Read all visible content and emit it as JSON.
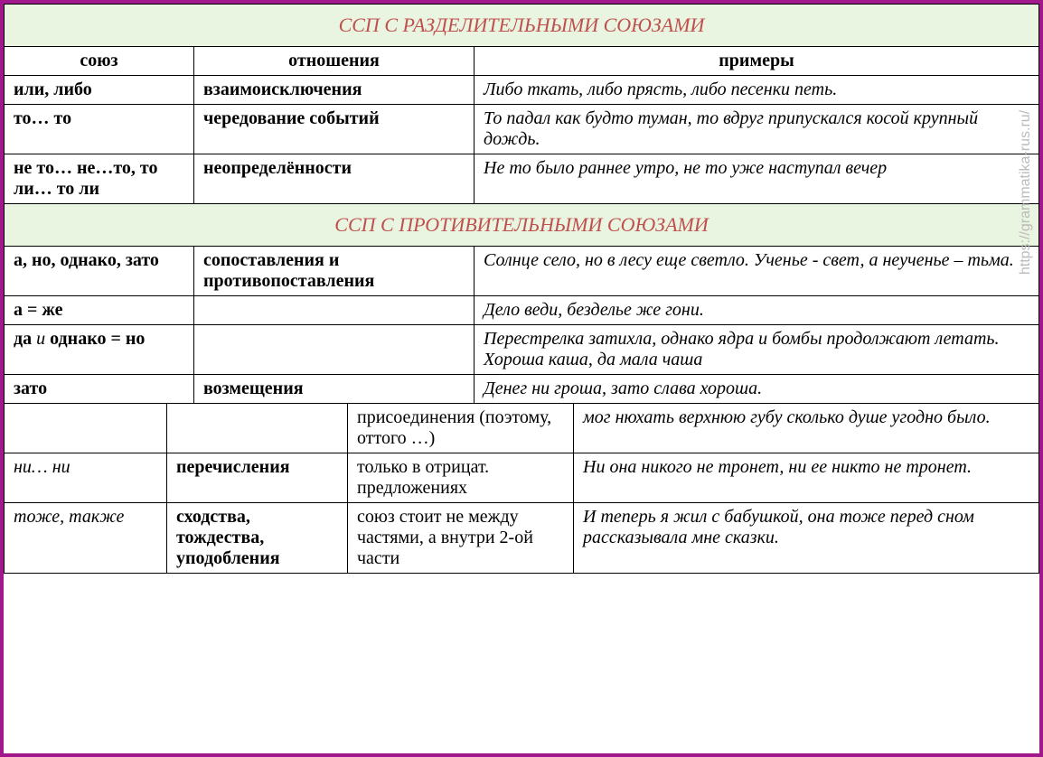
{
  "watermark": "https://grammatika-rus.ru/",
  "section1": {
    "title": "ССП С РАЗДЕЛИТЕЛЬНЫМИ СОЮЗАМИ",
    "headers": {
      "c1": "союз",
      "c2": "отношения",
      "c3": "примеры"
    },
    "rows": [
      {
        "conj": "или, либо",
        "rel": "взаимоисключения",
        "ex": "Либо ткать, либо прясть, либо песенки петь."
      },
      {
        "conj": "то… то",
        "rel": "чередование событий",
        "ex": "То падал как будто туман, то вдруг припускался косой крупный дождь."
      },
      {
        "conj": "не то… не…то, то ли… то ли",
        "rel": "неопределённости",
        "ex": "Не то было раннее утро, не то уже наступал вечер"
      }
    ]
  },
  "section2": {
    "title": "ССП С ПРОТИВИТЕЛЬНЫМИ СОЮЗАМИ",
    "rows": [
      {
        "conj": "а, но, однако, зато",
        "rel": "сопоставления и противопоставления",
        "ex": "Солнце село, но в лесу еще светло. Ученье - свет, а неученье – тьма."
      },
      {
        "conj": "а = же",
        "rel": "",
        "ex": "Дело веди, безделье же гони."
      },
      {
        "conj_html": "да <span class=\"italic-normal\">и</span> однако = но",
        "rel": "",
        "ex": "Перестрелка затихла, однако ядра и бомбы продолжают летать. Хороша каша, да мала чаша"
      },
      {
        "conj": "зато",
        "rel": "возмещения",
        "ex": "Денег ни гроша, зато слава хороша."
      }
    ]
  },
  "section3": {
    "rows": [
      {
        "conj": "",
        "rel": "",
        "note": "присоединения (поэтому, оттого …)",
        "ex": "мог нюхать верхнюю губу сколько душе угодно было."
      },
      {
        "conj": "ни… ни",
        "rel": "перечисления",
        "note": "только в отрицат. предложениях",
        "ex": "Ни она никого не тронет, ни ее никто не тронет."
      },
      {
        "conj": "тоже, также",
        "rel": "сходства, тождества, уподобления",
        "note": "союз стоит не между частями, а внутри 2-ой части",
        "ex": "И теперь я жил с бабушкой, она тоже перед сном рассказывала мне сказки."
      }
    ]
  },
  "colors": {
    "border": "#a0188c",
    "section_bg": "#e9f5e1",
    "section_title": "#c0504d"
  }
}
